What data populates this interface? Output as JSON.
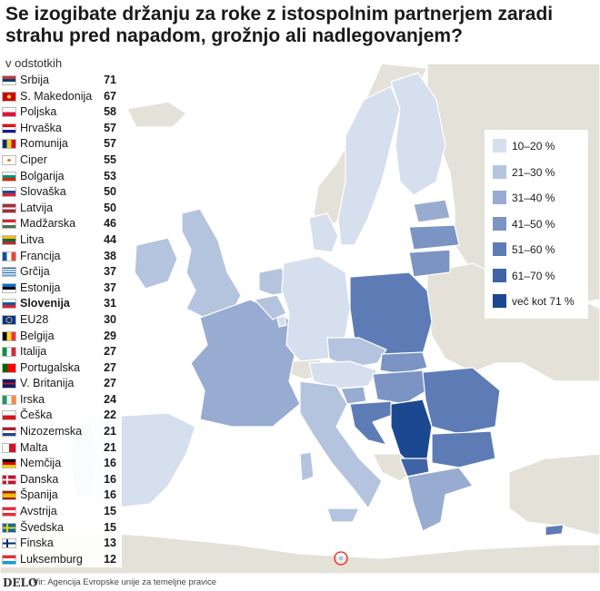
{
  "title": "Se izogibate držanju za roke z istospolnim partnerjem zaradi strahu pred napadom, grožnjo ali nadlegovanjem?",
  "subtitle": "v odstotkih",
  "legend": [
    {
      "label": "10–20 %",
      "color": "#d6dfee"
    },
    {
      "label": "21–30 %",
      "color": "#b4c4df"
    },
    {
      "label": "31–40 %",
      "color": "#98acd2"
    },
    {
      "label": "41–50 %",
      "color": "#7b94c4"
    },
    {
      "label": "51–60 %",
      "color": "#5d7cb6"
    },
    {
      "label": "61–70 %",
      "color": "#3f63a6"
    },
    {
      "label": "več kot 71 %",
      "color": "#1b4891"
    }
  ],
  "ranking": [
    {
      "name": "Srbija",
      "value": "71",
      "flag": "rs"
    },
    {
      "name": "S. Makedonija",
      "value": "67",
      "flag": "mk"
    },
    {
      "name": "Poljska",
      "value": "58",
      "flag": "pl"
    },
    {
      "name": "Hrvaška",
      "value": "57",
      "flag": "hr"
    },
    {
      "name": "Romunija",
      "value": "57",
      "flag": "ro"
    },
    {
      "name": "Ciper",
      "value": "55",
      "flag": "cy"
    },
    {
      "name": "Bolgarija",
      "value": "53",
      "flag": "bg"
    },
    {
      "name": "Slovaška",
      "value": "50",
      "flag": "sk"
    },
    {
      "name": "Latvija",
      "value": "50",
      "flag": "lv"
    },
    {
      "name": "Madžarska",
      "value": "46",
      "flag": "hu"
    },
    {
      "name": "Litva",
      "value": "44",
      "flag": "lt"
    },
    {
      "name": "Francija",
      "value": "38",
      "flag": "fr"
    },
    {
      "name": "Grčija",
      "value": "37",
      "flag": "gr"
    },
    {
      "name": "Estonija",
      "value": "37",
      "flag": "ee"
    },
    {
      "name": "Slovenija",
      "value": "31",
      "flag": "si",
      "highlight": true
    },
    {
      "name": "EU28",
      "value": "30",
      "flag": "eu"
    },
    {
      "name": "Belgija",
      "value": "29",
      "flag": "be"
    },
    {
      "name": "Italija",
      "value": "27",
      "flag": "it"
    },
    {
      "name": "Portugalska",
      "value": "27",
      "flag": "pt"
    },
    {
      "name": "V. Britanija",
      "value": "27",
      "flag": "gb"
    },
    {
      "name": "Irska",
      "value": "24",
      "flag": "ie"
    },
    {
      "name": "Češka",
      "value": "22",
      "flag": "cz"
    },
    {
      "name": "Nizozemska",
      "value": "21",
      "flag": "nl"
    },
    {
      "name": "Malta",
      "value": "21",
      "flag": "mt"
    },
    {
      "name": "Nemčija",
      "value": "16",
      "flag": "de"
    },
    {
      "name": "Danska",
      "value": "16",
      "flag": "dk"
    },
    {
      "name": "Španija",
      "value": "16",
      "flag": "es"
    },
    {
      "name": "Avstrija",
      "value": "15",
      "flag": "at"
    },
    {
      "name": "Švedska",
      "value": "15",
      "flag": "se"
    },
    {
      "name": "Finska",
      "value": "13",
      "flag": "fi"
    },
    {
      "name": "Luksemburg",
      "value": "12",
      "flag": "lu"
    }
  ],
  "footer": {
    "logo": "DELO",
    "source": "Vir: Agencija Evropske unije za temeljne pravice"
  },
  "colors": {
    "sea": "#ffffff",
    "non_eu": "#e4e1d8",
    "border": "#ffffff"
  }
}
